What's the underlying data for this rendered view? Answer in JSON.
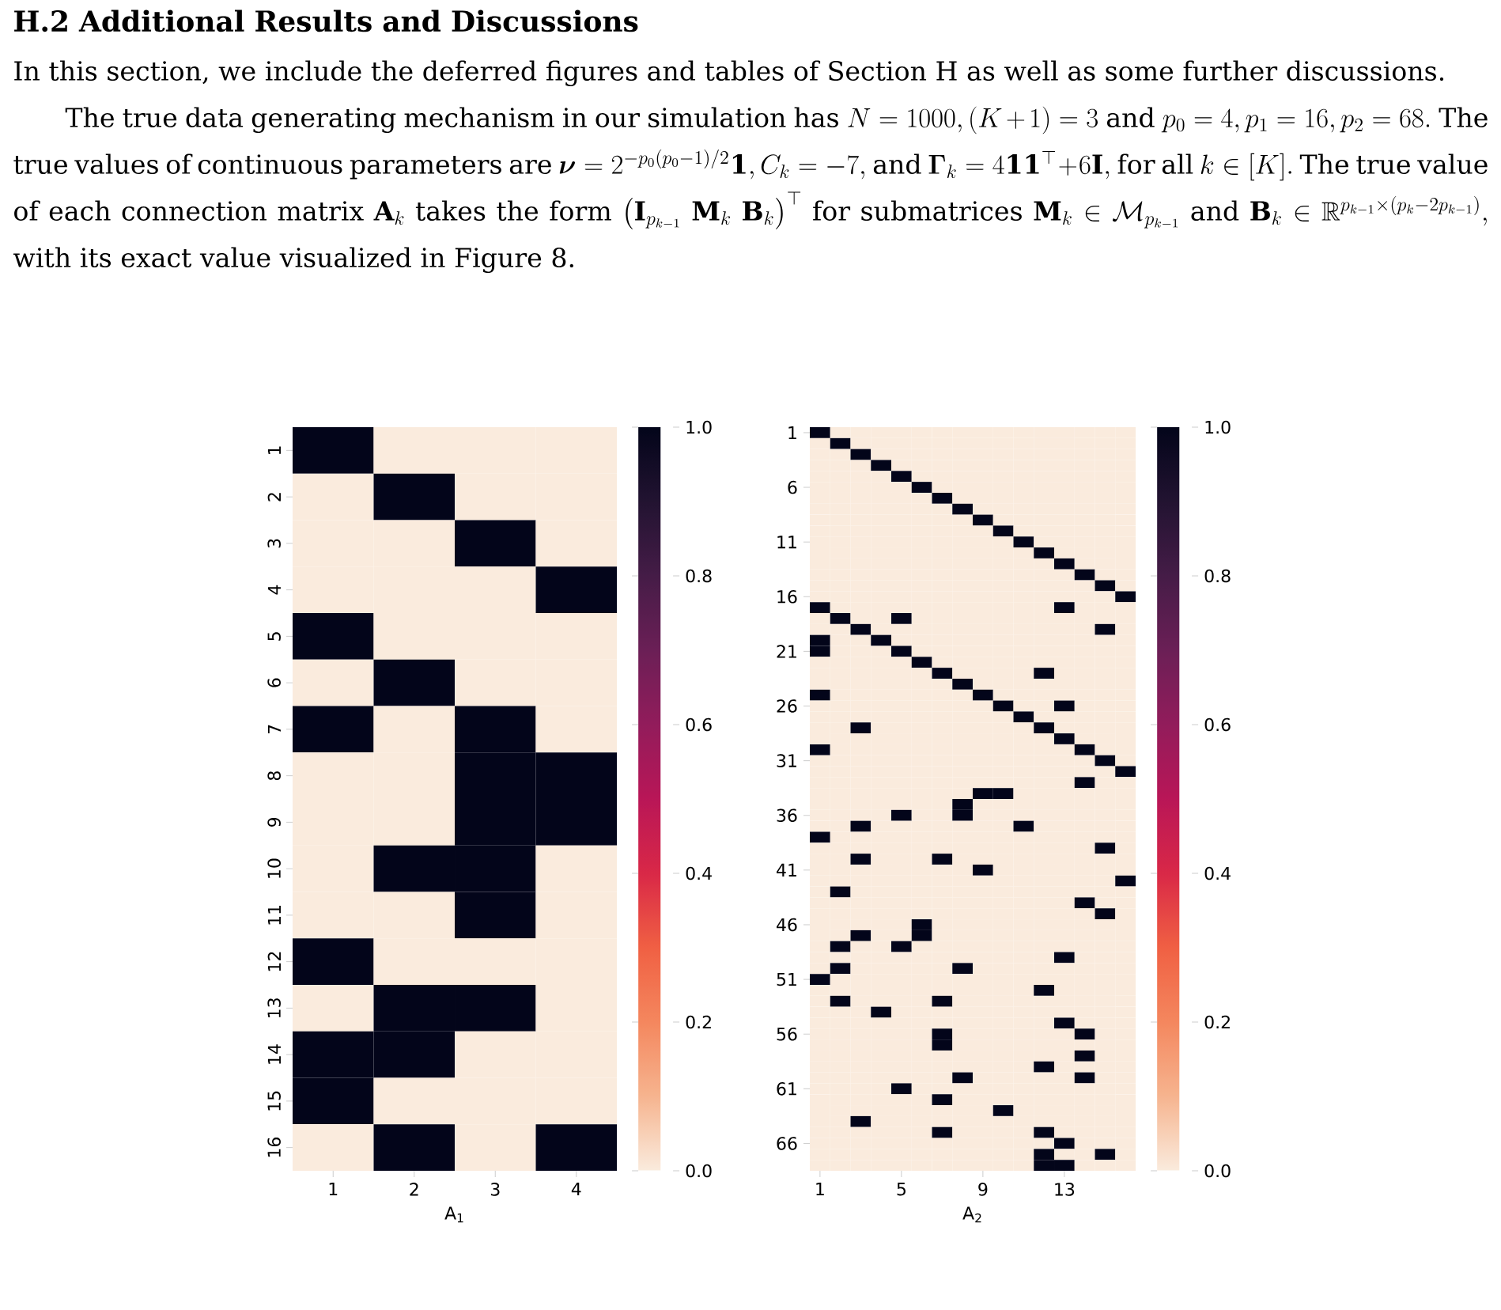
{
  "chart_data": [
    {
      "type": "heatmap",
      "annotations": [
        "**H.2    Additional Results and Discussions**",
        "In this section, we include the deferred figures and tables of Section H as well as some further discussions.",
        "The true data generating mechanism in our simulation has",
        "N = 1000, (K+1) = 3",
        "and",
        "p_0 = 4, p_1 = 16, p_2 = 68.",
        "The true values of continuous parameters are",
        "\\boldsymbol{\\nu} = 2^{-p_0(p_0-1)/2}\\mathbf{1}, C_k = -7,",
        "and",
        "\\boldsymbol{\\Gamma}_k = 4\\mathbf{1}\\mathbf{1}^{\\top} + 6\\mathbf{I},",
        "for all",
        "k \\in [K].",
        "The true value of each connection matrix",
        "\\mathbf{A}_k",
        "takes the form",
        "\\big(\\mathbf{I}_{p_{k-1}}\\ \\mathbf{M}_k\\ \\mathbf{B}_k\\big)^{\\top}",
        "for submatrices",
        "\\mathbf{M}_k \\in \\mathcal{M}_{p_{k-1}}",
        "and",
        "\\mathbf{B}_k \\in \\mathbb{R}^{p_{k-1}\\times(p_k-2p_{k-1})},",
        "with its exact value visualized in Figure 8."
      ],
      "xlabel": "A$_{1}$",
      "categories": [
        "1",
        "2",
        "3",
        "4"
      ],
      "y_categories": [
        "1",
        "2",
        "3",
        "4",
        "5",
        "6",
        "7",
        "8",
        "9",
        "10",
        "11",
        "12",
        "13",
        "14",
        "15",
        "16"
      ],
      "cells": [
        [
          1,
          0,
          0,
          0
        ],
        [
          0,
          1,
          0,
          0
        ],
        [
          0,
          0,
          1,
          0
        ],
        [
          0,
          0,
          0,
          1
        ],
        [
          1,
          0,
          0,
          0
        ],
        [
          0,
          1,
          0,
          0
        ],
        [
          1,
          0,
          1,
          0
        ],
        [
          0,
          0,
          1,
          1
        ],
        [
          0,
          0,
          1,
          1
        ],
        [
          0,
          1,
          1,
          0
        ],
        [
          0,
          0,
          1,
          0
        ],
        [
          1,
          0,
          0,
          0
        ],
        [
          0,
          1,
          1,
          0
        ],
        [
          1,
          1,
          0,
          0
        ],
        [
          1,
          0,
          0,
          0
        ],
        [
          0,
          1,
          0,
          1
        ]
      ],
      "clim": [
        0,
        1
      ],
      "cticks": [
        {
          "value": 0,
          "label": "0.0"
        },
        {
          "value": 0.2,
          "label": "0.2"
        },
        {
          "value": 0.4,
          "label": "0.4"
        },
        {
          "value": 0.6,
          "label": "0.6"
        },
        {
          "value": 0.8,
          "label": "0.8"
        },
        {
          "value": 1,
          "label": "1.0"
        }
      ]
    },
    {
      "type": "heatmap",
      "xlabel": "A$_{2}$",
      "categories": [
        "1",
        null,
        null,
        null,
        "5",
        null,
        null,
        null,
        "9",
        null,
        null,
        null,
        "13",
        null,
        null,
        null
      ],
      "y_categories": [
        "1",
        null,
        null,
        null,
        null,
        "6",
        null,
        null,
        null,
        null,
        "11",
        null,
        null,
        null,
        null,
        "16",
        null,
        null,
        null,
        null,
        "21",
        null,
        null,
        null,
        null,
        "26",
        null,
        null,
        null,
        null,
        "31",
        null,
        null,
        null,
        null,
        "36",
        null,
        null,
        null,
        null,
        "41",
        null,
        null,
        null,
        null,
        "46",
        null,
        null,
        null,
        null,
        "51",
        null,
        null,
        null,
        null,
        "56",
        null,
        null,
        null,
        null,
        "61",
        null,
        null,
        null,
        null,
        "66",
        null,
        null
      ],
      "cells": [
        [
          1,
          0,
          0,
          0,
          0,
          0,
          0,
          0,
          0,
          0,
          0,
          0,
          0,
          0,
          0,
          0
        ],
        [
          0,
          1,
          0,
          0,
          0,
          0,
          0,
          0,
          0,
          0,
          0,
          0,
          0,
          0,
          0,
          0
        ],
        [
          0,
          0,
          1,
          0,
          0,
          0,
          0,
          0,
          0,
          0,
          0,
          0,
          0,
          0,
          0,
          0
        ],
        [
          0,
          0,
          0,
          1,
          0,
          0,
          0,
          0,
          0,
          0,
          0,
          0,
          0,
          0,
          0,
          0
        ],
        [
          0,
          0,
          0,
          0,
          1,
          0,
          0,
          0,
          0,
          0,
          0,
          0,
          0,
          0,
          0,
          0
        ],
        [
          0,
          0,
          0,
          0,
          0,
          1,
          0,
          0,
          0,
          0,
          0,
          0,
          0,
          0,
          0,
          0
        ],
        [
          0,
          0,
          0,
          0,
          0,
          0,
          1,
          0,
          0,
          0,
          0,
          0,
          0,
          0,
          0,
          0
        ],
        [
          0,
          0,
          0,
          0,
          0,
          0,
          0,
          1,
          0,
          0,
          0,
          0,
          0,
          0,
          0,
          0
        ],
        [
          0,
          0,
          0,
          0,
          0,
          0,
          0,
          0,
          1,
          0,
          0,
          0,
          0,
          0,
          0,
          0
        ],
        [
          0,
          0,
          0,
          0,
          0,
          0,
          0,
          0,
          0,
          1,
          0,
          0,
          0,
          0,
          0,
          0
        ],
        [
          0,
          0,
          0,
          0,
          0,
          0,
          0,
          0,
          0,
          0,
          1,
          0,
          0,
          0,
          0,
          0
        ],
        [
          0,
          0,
          0,
          0,
          0,
          0,
          0,
          0,
          0,
          0,
          0,
          1,
          0,
          0,
          0,
          0
        ],
        [
          0,
          0,
          0,
          0,
          0,
          0,
          0,
          0,
          0,
          0,
          0,
          0,
          1,
          0,
          0,
          0
        ],
        [
          0,
          0,
          0,
          0,
          0,
          0,
          0,
          0,
          0,
          0,
          0,
          0,
          0,
          1,
          0,
          0
        ],
        [
          0,
          0,
          0,
          0,
          0,
          0,
          0,
          0,
          0,
          0,
          0,
          0,
          0,
          0,
          1,
          0
        ],
        [
          0,
          0,
          0,
          0,
          0,
          0,
          0,
          0,
          0,
          0,
          0,
          0,
          0,
          0,
          0,
          1
        ],
        [
          1,
          0,
          0,
          0,
          0,
          0,
          0,
          0,
          0,
          0,
          0,
          0,
          1,
          0,
          0,
          0
        ],
        [
          0,
          1,
          0,
          0,
          1,
          0,
          0,
          0,
          0,
          0,
          0,
          0,
          0,
          0,
          0,
          0
        ],
        [
          0,
          0,
          1,
          0,
          0,
          0,
          0,
          0,
          0,
          0,
          0,
          0,
          0,
          0,
          1,
          0
        ],
        [
          1,
          0,
          0,
          1,
          0,
          0,
          0,
          0,
          0,
          0,
          0,
          0,
          0,
          0,
          0,
          0
        ],
        [
          1,
          0,
          0,
          0,
          1,
          0,
          0,
          0,
          0,
          0,
          0,
          0,
          0,
          0,
          0,
          0
        ],
        [
          0,
          0,
          0,
          0,
          0,
          1,
          0,
          0,
          0,
          0,
          0,
          0,
          0,
          0,
          0,
          0
        ],
        [
          0,
          0,
          0,
          0,
          0,
          0,
          1,
          0,
          0,
          0,
          0,
          1,
          0,
          0,
          0,
          0
        ],
        [
          0,
          0,
          0,
          0,
          0,
          0,
          0,
          1,
          0,
          0,
          0,
          0,
          0,
          0,
          0,
          0
        ],
        [
          1,
          0,
          0,
          0,
          0,
          0,
          0,
          0,
          1,
          0,
          0,
          0,
          0,
          0,
          0,
          0
        ],
        [
          0,
          0,
          0,
          0,
          0,
          0,
          0,
          0,
          0,
          1,
          0,
          0,
          1,
          0,
          0,
          0
        ],
        [
          0,
          0,
          0,
          0,
          0,
          0,
          0,
          0,
          0,
          0,
          1,
          0,
          0,
          0,
          0,
          0
        ],
        [
          0,
          0,
          1,
          0,
          0,
          0,
          0,
          0,
          0,
          0,
          0,
          1,
          0,
          0,
          0,
          0
        ],
        [
          0,
          0,
          0,
          0,
          0,
          0,
          0,
          0,
          0,
          0,
          0,
          0,
          1,
          0,
          0,
          0
        ],
        [
          1,
          0,
          0,
          0,
          0,
          0,
          0,
          0,
          0,
          0,
          0,
          0,
          0,
          1,
          0,
          0
        ],
        [
          0,
          0,
          0,
          0,
          0,
          0,
          0,
          0,
          0,
          0,
          0,
          0,
          0,
          0,
          1,
          0
        ],
        [
          0,
          0,
          0,
          0,
          0,
          0,
          0,
          0,
          0,
          0,
          0,
          0,
          0,
          0,
          0,
          1
        ],
        [
          0,
          0,
          0,
          0,
          0,
          0,
          0,
          0,
          0,
          0,
          0,
          0,
          0,
          1,
          0,
          0
        ],
        [
          0,
          0,
          0,
          0,
          0,
          0,
          0,
          0,
          1,
          1,
          0,
          0,
          0,
          0,
          0,
          0
        ],
        [
          0,
          0,
          0,
          0,
          0,
          0,
          0,
          1,
          0,
          0,
          0,
          0,
          0,
          0,
          0,
          0
        ],
        [
          0,
          0,
          0,
          0,
          1,
          0,
          0,
          1,
          0,
          0,
          0,
          0,
          0,
          0,
          0,
          0
        ],
        [
          0,
          0,
          1,
          0,
          0,
          0,
          0,
          0,
          0,
          0,
          1,
          0,
          0,
          0,
          0,
          0
        ],
        [
          1,
          0,
          0,
          0,
          0,
          0,
          0,
          0,
          0,
          0,
          0,
          0,
          0,
          0,
          0,
          0
        ],
        [
          0,
          0,
          0,
          0,
          0,
          0,
          0,
          0,
          0,
          0,
          0,
          0,
          0,
          0,
          1,
          0
        ],
        [
          0,
          0,
          1,
          0,
          0,
          0,
          1,
          0,
          0,
          0,
          0,
          0,
          0,
          0,
          0,
          0
        ],
        [
          0,
          0,
          0,
          0,
          0,
          0,
          0,
          0,
          1,
          0,
          0,
          0,
          0,
          0,
          0,
          0
        ],
        [
          0,
          0,
          0,
          0,
          0,
          0,
          0,
          0,
          0,
          0,
          0,
          0,
          0,
          0,
          0,
          1
        ],
        [
          0,
          1,
          0,
          0,
          0,
          0,
          0,
          0,
          0,
          0,
          0,
          0,
          0,
          0,
          0,
          0
        ],
        [
          0,
          0,
          0,
          0,
          0,
          0,
          0,
          0,
          0,
          0,
          0,
          0,
          0,
          1,
          0,
          0
        ],
        [
          0,
          0,
          0,
          0,
          0,
          0,
          0,
          0,
          0,
          0,
          0,
          0,
          0,
          0,
          1,
          0
        ],
        [
          0,
          0,
          0,
          0,
          0,
          1,
          0,
          0,
          0,
          0,
          0,
          0,
          0,
          0,
          0,
          0
        ],
        [
          0,
          0,
          1,
          0,
          0,
          1,
          0,
          0,
          0,
          0,
          0,
          0,
          0,
          0,
          0,
          0
        ],
        [
          0,
          1,
          0,
          0,
          1,
          0,
          0,
          0,
          0,
          0,
          0,
          0,
          0,
          0,
          0,
          0
        ],
        [
          0,
          0,
          0,
          0,
          0,
          0,
          0,
          0,
          0,
          0,
          0,
          0,
          1,
          0,
          0,
          0
        ],
        [
          0,
          1,
          0,
          0,
          0,
          0,
          0,
          1,
          0,
          0,
          0,
          0,
          0,
          0,
          0,
          0
        ],
        [
          1,
          0,
          0,
          0,
          0,
          0,
          0,
          0,
          0,
          0,
          0,
          0,
          0,
          0,
          0,
          0
        ],
        [
          0,
          0,
          0,
          0,
          0,
          0,
          0,
          0,
          0,
          0,
          0,
          1,
          0,
          0,
          0,
          0
        ],
        [
          0,
          1,
          0,
          0,
          0,
          0,
          1,
          0,
          0,
          0,
          0,
          0,
          0,
          0,
          0,
          0
        ],
        [
          0,
          0,
          0,
          1,
          0,
          0,
          0,
          0,
          0,
          0,
          0,
          0,
          0,
          0,
          0,
          0
        ],
        [
          0,
          0,
          0,
          0,
          0,
          0,
          0,
          0,
          0,
          0,
          0,
          0,
          1,
          0,
          0,
          0
        ],
        [
          0,
          0,
          0,
          0,
          0,
          0,
          1,
          0,
          0,
          0,
          0,
          0,
          0,
          1,
          0,
          0
        ],
        [
          0,
          0,
          0,
          0,
          0,
          0,
          1,
          0,
          0,
          0,
          0,
          0,
          0,
          0,
          0,
          0
        ],
        [
          0,
          0,
          0,
          0,
          0,
          0,
          0,
          0,
          0,
          0,
          0,
          0,
          0,
          1,
          0,
          0
        ],
        [
          0,
          0,
          0,
          0,
          0,
          0,
          0,
          0,
          0,
          0,
          0,
          1,
          0,
          0,
          0,
          0
        ],
        [
          0,
          0,
          0,
          0,
          0,
          0,
          0,
          1,
          0,
          0,
          0,
          0,
          0,
          1,
          0,
          0
        ],
        [
          0,
          0,
          0,
          0,
          1,
          0,
          0,
          0,
          0,
          0,
          0,
          0,
          0,
          0,
          0,
          0
        ],
        [
          0,
          0,
          0,
          0,
          0,
          0,
          1,
          0,
          0,
          0,
          0,
          0,
          0,
          0,
          0,
          0
        ],
        [
          0,
          0,
          0,
          0,
          0,
          0,
          0,
          0,
          0,
          1,
          0,
          0,
          0,
          0,
          0,
          0
        ],
        [
          0,
          0,
          1,
          0,
          0,
          0,
          0,
          0,
          0,
          0,
          0,
          0,
          0,
          0,
          0,
          0
        ],
        [
          0,
          0,
          0,
          0,
          0,
          0,
          1,
          0,
          0,
          0,
          0,
          1,
          0,
          0,
          0,
          0
        ],
        [
          0,
          0,
          0,
          0,
          0,
          0,
          0,
          0,
          0,
          0,
          0,
          0,
          1,
          0,
          0,
          0
        ],
        [
          0,
          0,
          0,
          0,
          0,
          0,
          0,
          0,
          0,
          0,
          0,
          1,
          0,
          0,
          1,
          0
        ],
        [
          0,
          0,
          0,
          0,
          0,
          0,
          0,
          0,
          0,
          0,
          0,
          1,
          1,
          0,
          0,
          0
        ]
      ],
      "clim": [
        0,
        1
      ],
      "cticks": [
        {
          "value": 0,
          "label": "0.0"
        },
        {
          "value": 0.2,
          "label": "0.2"
        },
        {
          "value": 0.4,
          "label": "0.4"
        },
        {
          "value": 0.6,
          "label": "0.6"
        },
        {
          "value": 0.8,
          "label": "0.8"
        },
        {
          "value": 1,
          "label": "1.0"
        }
      ]
    }
  ]
}
